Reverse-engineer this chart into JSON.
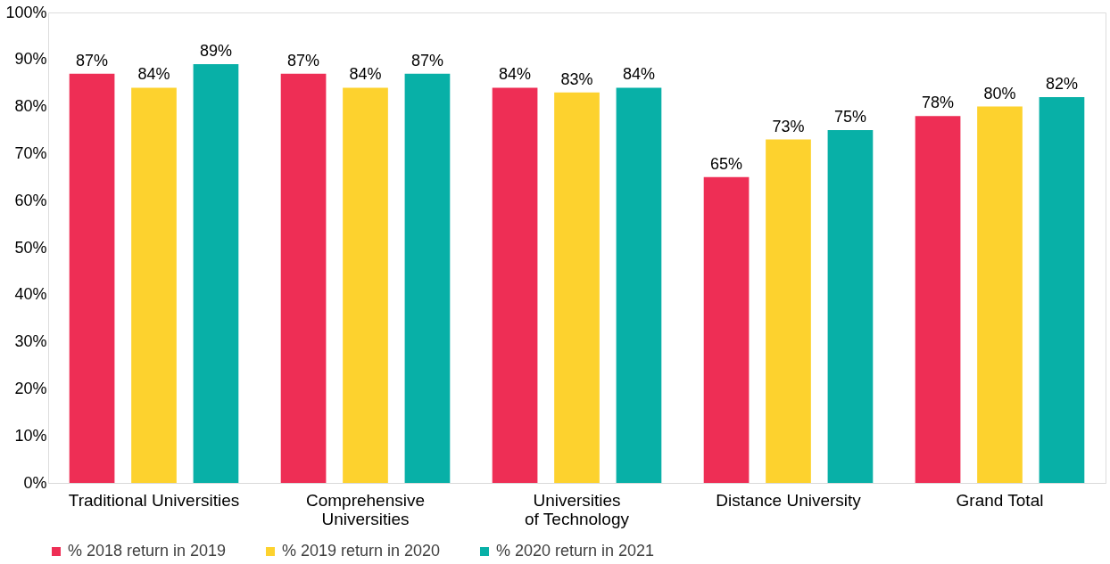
{
  "chart_data": {
    "type": "bar",
    "categories": [
      "Traditional Universities",
      "Comprehensive Universities",
      "Universities of Technology",
      "Distance University",
      "Grand Total"
    ],
    "series": [
      {
        "name": "% 2018 return in 2019",
        "color": "#ee2e55",
        "values": [
          87,
          87,
          84,
          65,
          78
        ],
        "value_labels": [
          "87%",
          "87%",
          "84%",
          "65%",
          "78%"
        ]
      },
      {
        "name": "% 2019 return in 2020",
        "color": "#fdd22e",
        "values": [
          84,
          84,
          83,
          73,
          80
        ],
        "value_labels": [
          "84%",
          "84%",
          "83%",
          "73%",
          "80%"
        ]
      },
      {
        "name": "% 2020 return in 2021",
        "color": "#08b0a7",
        "values": [
          89,
          87,
          84,
          75,
          82
        ],
        "value_labels": [
          "89%",
          "87%",
          "84%",
          "75%",
          "82%"
        ]
      }
    ],
    "ylim": [
      0,
      100
    ],
    "yticks": [
      {
        "value": 0,
        "label": "0%"
      },
      {
        "value": 10,
        "label": "10%"
      },
      {
        "value": 20,
        "label": "20%"
      },
      {
        "value": 30,
        "label": "30%"
      },
      {
        "value": 40,
        "label": "40%"
      },
      {
        "value": 50,
        "label": "50%"
      },
      {
        "value": 60,
        "label": "60%"
      },
      {
        "value": 70,
        "label": "70%"
      },
      {
        "value": 80,
        "label": "80%"
      },
      {
        "value": 90,
        "label": "90%"
      },
      {
        "value": 100,
        "label": "100%"
      }
    ],
    "grid": false,
    "legend": "bottom"
  }
}
